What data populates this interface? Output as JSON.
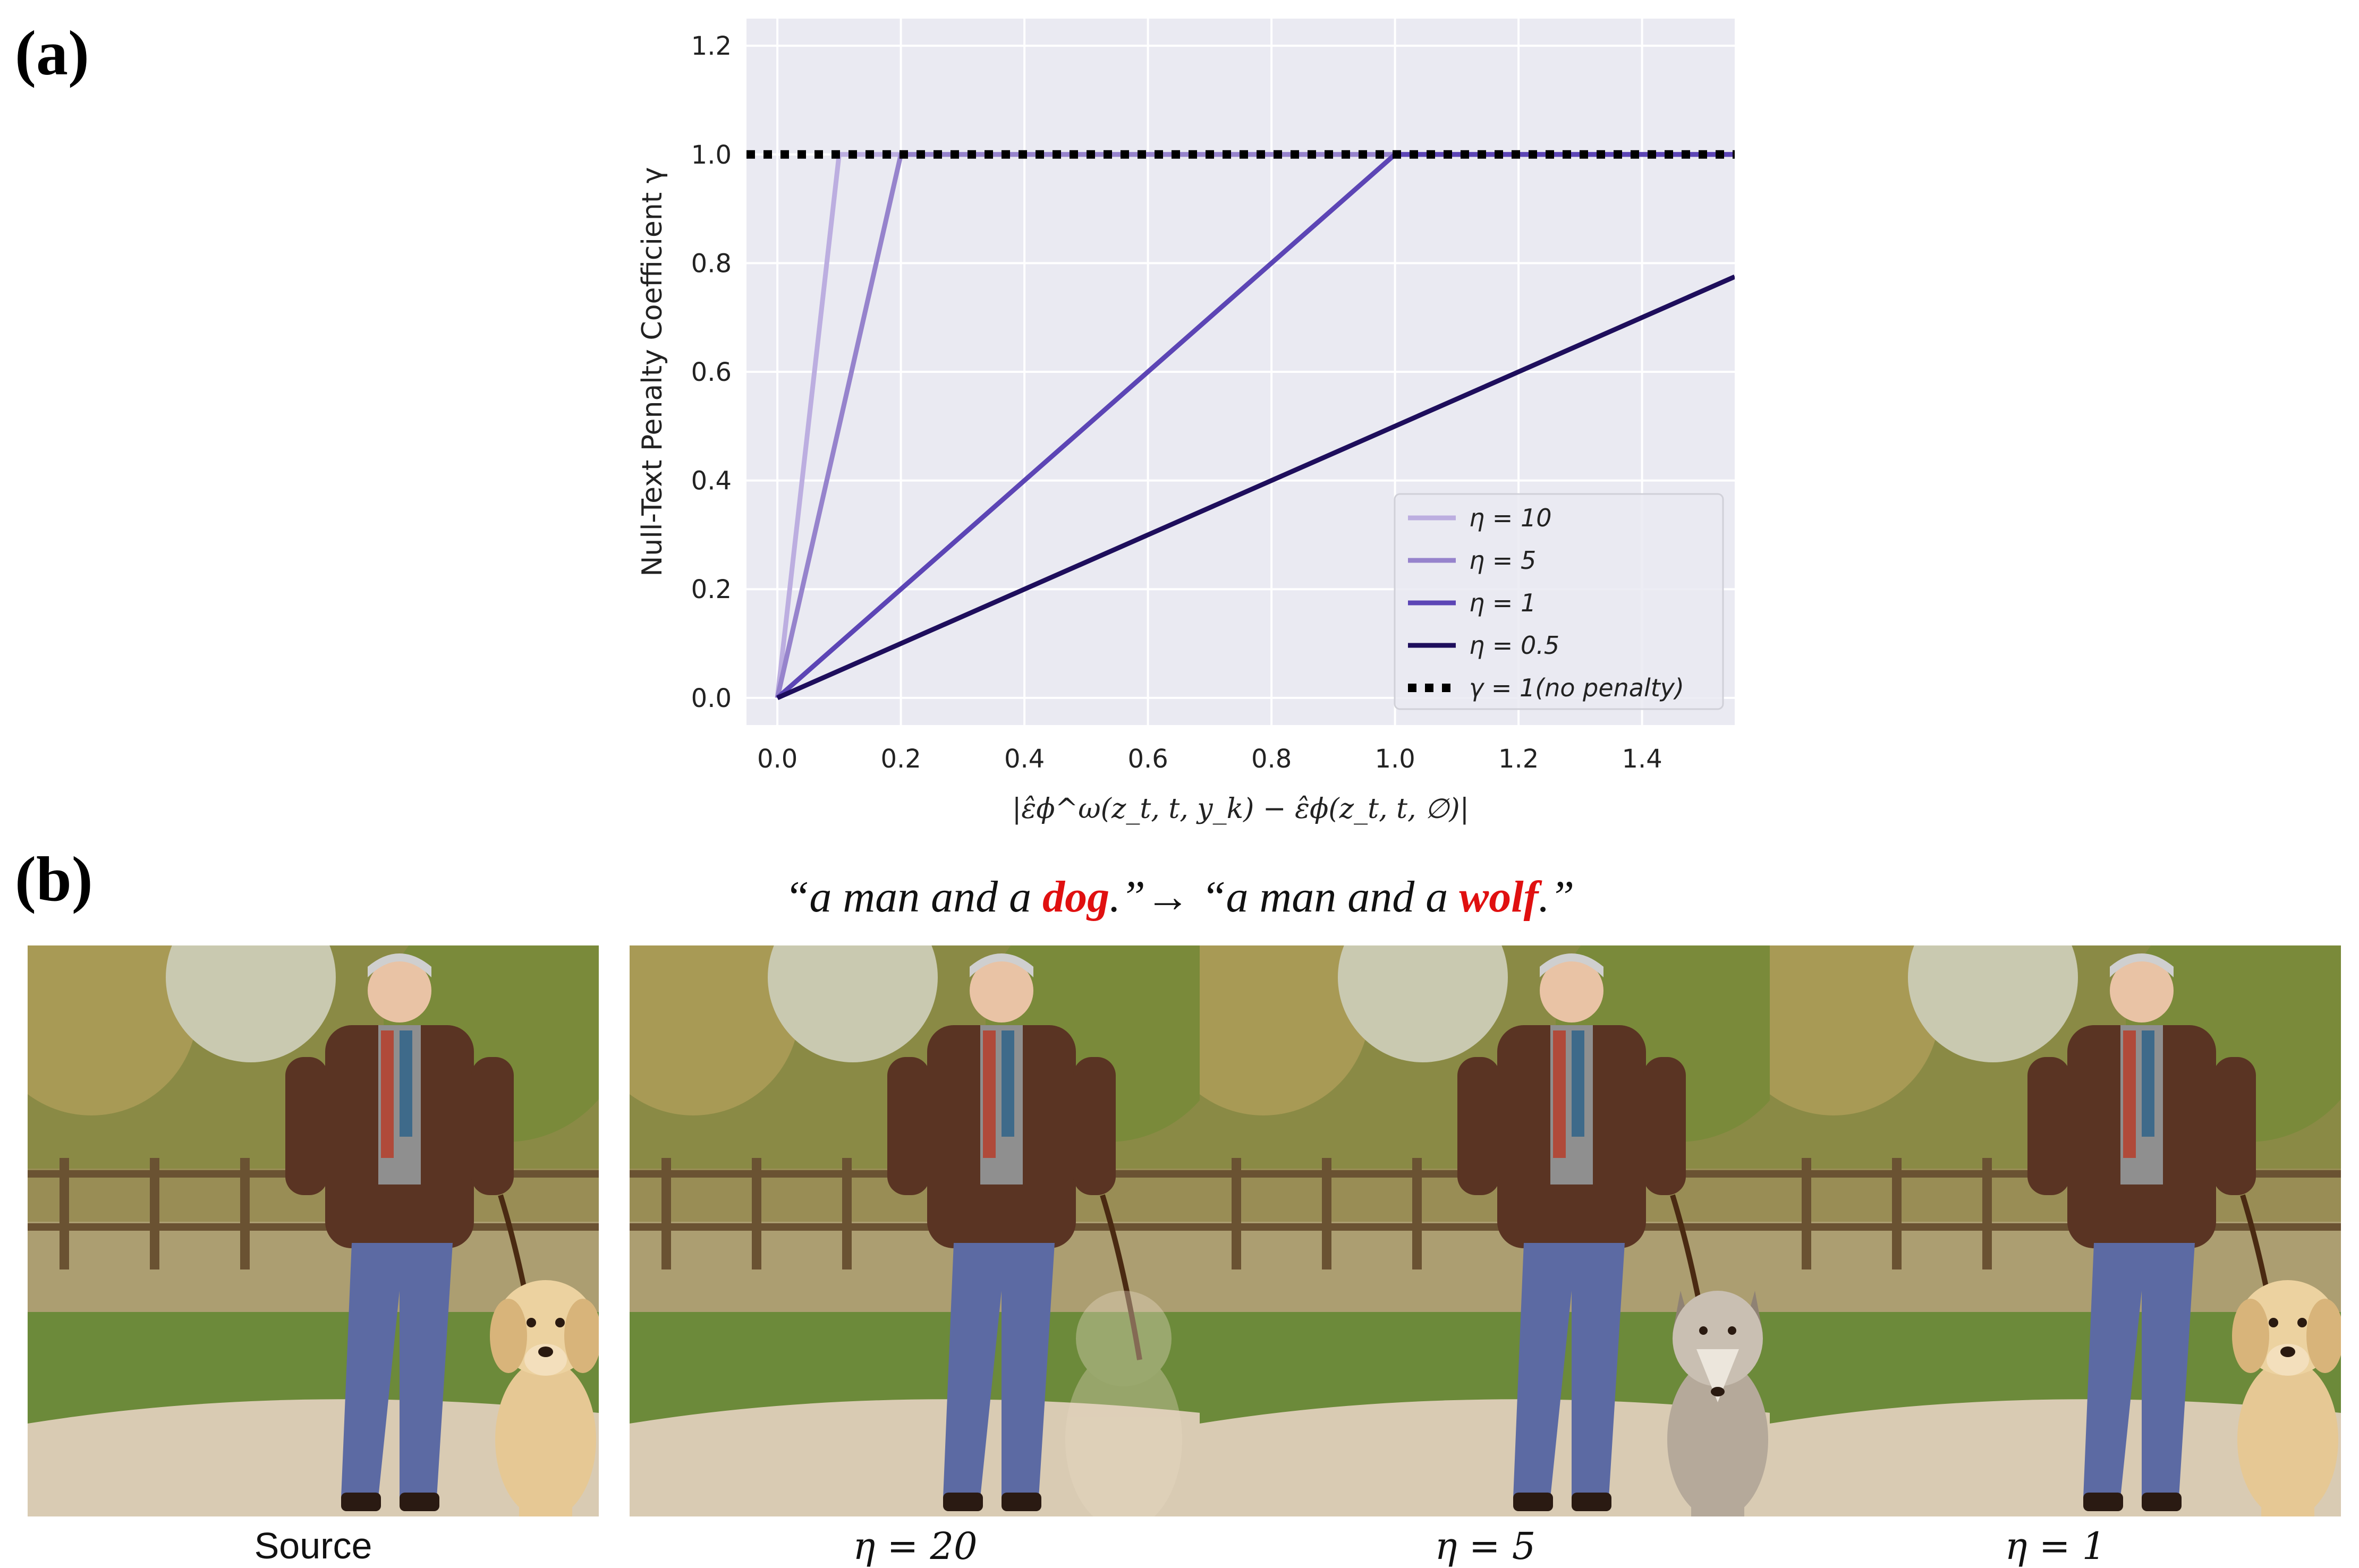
{
  "panels": {
    "a": "(a)",
    "b": "(b)"
  },
  "chart_data": {
    "type": "line",
    "xlabel": "|ε̂ϕ^ω(z_t, t, y_k) − ε̂ϕ(z_t, t, ∅)|",
    "ylabel": "Null-Text Penalty Coefficient γ",
    "xlim": [
      -0.05,
      1.55
    ],
    "ylim": [
      -0.05,
      1.25
    ],
    "xticks": [
      "0.0",
      "0.2",
      "0.4",
      "0.6",
      "0.8",
      "1.0",
      "1.2",
      "1.4"
    ],
    "yticks": [
      "0.0",
      "0.2",
      "0.4",
      "0.6",
      "0.8",
      "1.0",
      "1.2"
    ],
    "grid": true,
    "legend_position": "lower-right",
    "series": [
      {
        "name": "η = 10",
        "color": "#bcaee0",
        "style": "solid",
        "x": [
          0.0,
          0.1,
          1.55
        ],
        "y": [
          0.0,
          1.0,
          1.0
        ]
      },
      {
        "name": "η = 5",
        "color": "#9683cc",
        "style": "solid",
        "x": [
          0.0,
          0.2,
          1.55
        ],
        "y": [
          0.0,
          1.0,
          1.0
        ]
      },
      {
        "name": "η = 1",
        "color": "#5c45b5",
        "style": "solid",
        "x": [
          0.0,
          1.0,
          1.55
        ],
        "y": [
          0.0,
          1.0,
          1.0
        ]
      },
      {
        "name": "η = 0.5",
        "color": "#1e0e5c",
        "style": "solid",
        "x": [
          0.0,
          1.55
        ],
        "y": [
          0.0,
          0.775
        ]
      },
      {
        "name": "γ = 1(no penalty)",
        "color": "#000000",
        "style": "dotted",
        "x": [
          -0.05,
          1.55
        ],
        "y": [
          1.0,
          1.0
        ]
      }
    ]
  },
  "caption": {
    "open1": "“a man and a ",
    "word1": "dog",
    "mid": ".”→ “a man and a ",
    "word2": "wolf",
    "close": ".”"
  },
  "images": [
    {
      "label": "Source",
      "animal": "dog"
    },
    {
      "label": "η = 20",
      "animal": "faded"
    },
    {
      "label": "η = 5",
      "animal": "wolf"
    },
    {
      "label": "η = 1",
      "animal": "dog"
    }
  ]
}
